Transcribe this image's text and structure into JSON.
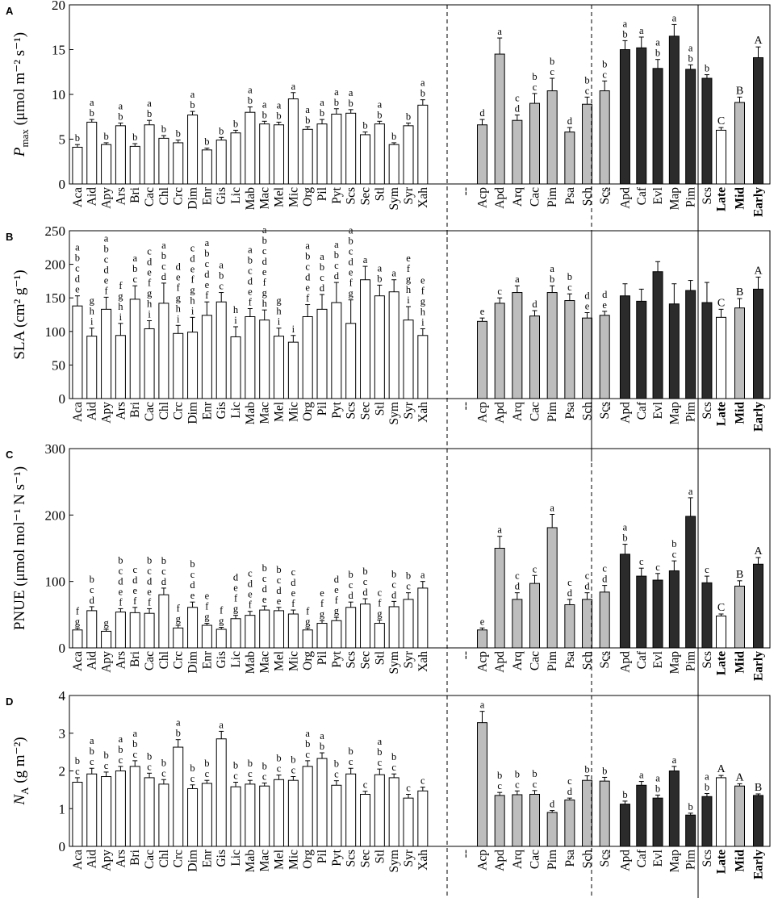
{
  "colors": {
    "white": "#ffffff",
    "grey": "#bdbdbd",
    "black": "#2b2b2b",
    "stroke": "#000000"
  },
  "chart_data": [
    {
      "type": "bar",
      "panel": "A",
      "ylabel_main": "P",
      "ylabel_sub": "max",
      "ylabel_units": "(μmol m⁻² s⁻¹)",
      "ylim": [
        0,
        20
      ],
      "yticks": [
        0,
        5,
        10,
        15,
        20
      ],
      "groups": [
        {
          "name": "grassland",
          "color": "white",
          "separator": "dashed",
          "categories": [
            "Aca",
            "Aid",
            "Apy",
            "Ars",
            "Bri",
            "Cac",
            "Chl",
            "Crc",
            "Dim",
            "Enr",
            "Gis",
            "Lic",
            "Mab",
            "Mac",
            "Mel",
            "Mic",
            "Org",
            "Pil",
            "Pyt",
            "Scs",
            "Sec",
            "Stl",
            "Sym",
            "Syr",
            "Xah"
          ],
          "values": [
            4.1,
            6.9,
            4.4,
            6.5,
            4.2,
            6.6,
            5.1,
            4.6,
            7.7,
            3.8,
            4.9,
            5.7,
            8.0,
            6.7,
            6.6,
            9.5,
            6.1,
            6.7,
            7.8,
            7.9,
            5.5,
            6.7,
            4.4,
            6.5,
            8.8
          ],
          "errors": [
            0.3,
            0.3,
            0.2,
            0.3,
            0.3,
            0.5,
            0.3,
            0.3,
            0.4,
            0.2,
            0.3,
            0.3,
            0.6,
            0.3,
            0.3,
            0.7,
            0.3,
            0.5,
            0.6,
            0.4,
            0.3,
            0.3,
            0.2,
            0.3,
            0.6
          ],
          "letters": [
            "b",
            "a b",
            "b",
            "a b",
            "b",
            "a b",
            "b",
            "b",
            "a b",
            "b",
            "b",
            "b",
            "a b",
            "a b",
            "a b",
            "a",
            "a b",
            "a b",
            "a b",
            "a b",
            "b",
            "a b",
            "b",
            "b",
            "a b"
          ]
        },
        {
          "name": "shrubland",
          "color": "grey",
          "separator": "dashed",
          "categories": [
            "--",
            "Acp",
            "Apd",
            "Arq",
            "Cac",
            "Pim",
            "Psa",
            "Sch",
            "Scs"
          ],
          "values": [
            null,
            6.6,
            14.5,
            7.1,
            9.0,
            10.4,
            5.8,
            8.9,
            10.4
          ],
          "errors": [
            null,
            0.6,
            1.8,
            0.6,
            1.1,
            1.4,
            0.5,
            0.8,
            1.1
          ],
          "letters": [
            "",
            "d",
            "a",
            "c d",
            "b c",
            "b c",
            "d",
            "b c",
            "b c"
          ]
        },
        {
          "name": "forest",
          "color": "black",
          "separator": "solid",
          "categories": [
            "--",
            "Apd",
            "Caf",
            "Evl",
            "Map",
            "Pim",
            "Scs"
          ],
          "values": [
            null,
            15.0,
            15.2,
            12.9,
            16.5,
            12.8,
            11.8
          ],
          "errors": [
            null,
            1.0,
            1.2,
            1.0,
            1.3,
            0.5,
            0.4
          ],
          "letters": [
            "",
            "a b",
            "a",
            "a b",
            "a",
            "a b",
            "b"
          ]
        },
        {
          "name": "succession",
          "color": "mixed",
          "separator": "none",
          "bold_labels": true,
          "categories": [
            "Late",
            "Mid",
            "Early"
          ],
          "colors": [
            "white",
            "grey",
            "black"
          ],
          "values": [
            6.0,
            9.1,
            14.1
          ],
          "errors": [
            0.3,
            0.6,
            1.2
          ],
          "letters": [
            "C",
            "B",
            "A"
          ]
        }
      ]
    },
    {
      "type": "bar",
      "panel": "B",
      "ylabel_main": "SLA (cm² g⁻¹)",
      "ylabel_sub": "",
      "ylabel_units": "",
      "ylim": [
        0,
        250
      ],
      "yticks": [
        0,
        50,
        100,
        150,
        200,
        250
      ],
      "groups": [
        {
          "name": "grassland",
          "color": "white",
          "separator": "dashed",
          "categories": [
            "Aca",
            "Aid",
            "Apy",
            "Ars",
            "Bri",
            "Cac",
            "Chl",
            "Crc",
            "Dim",
            "Enr",
            "Gis",
            "Lic",
            "Mab",
            "Mac",
            "Mel",
            "Mic",
            "Org",
            "Pil",
            "Pyt",
            "Scs",
            "Sec",
            "Stl",
            "Sym",
            "Syr",
            "Xah"
          ],
          "values": [
            138,
            93,
            133,
            94,
            148,
            104,
            142,
            97,
            99,
            124,
            144,
            92,
            122,
            117,
            93,
            84,
            122,
            133,
            143,
            112,
            177,
            153,
            159,
            117,
            94
          ],
          "errors": [
            15,
            12,
            18,
            18,
            20,
            12,
            30,
            12,
            22,
            20,
            14,
            15,
            12,
            15,
            12,
            10,
            18,
            22,
            30,
            35,
            20,
            16,
            18,
            20,
            10
          ],
          "letters": [
            "a b c d e",
            "g h i",
            "a b c d e f",
            "f g h i",
            "a b c",
            "c d e f g h i",
            "a b c d",
            "d e f g h i",
            "c d e f g h i",
            "a b c d e f",
            "a b c",
            "h i",
            "a b c d e f",
            "a b c d e f g h",
            "g h i",
            "i",
            "a b c d e f",
            "a b c d",
            "a b c d",
            "a b c d e f g",
            "a",
            "a b",
            "a",
            "e f g h i",
            "e f g h i"
          ]
        },
        {
          "name": "shrubland",
          "color": "grey",
          "separator": "solid",
          "categories": [
            "--",
            "Acp",
            "Apd",
            "Arq",
            "Cac",
            "Pim",
            "Psa",
            "Sch",
            "Scs"
          ],
          "values": [
            null,
            115,
            142,
            158,
            123,
            158,
            146,
            120,
            124
          ],
          "errors": [
            null,
            5,
            8,
            10,
            8,
            10,
            10,
            8,
            6
          ],
          "letters": [
            "",
            "e",
            "c",
            "a",
            "d",
            "a b",
            "b c",
            "d e",
            "d e"
          ]
        },
        {
          "name": "forest",
          "color": "black",
          "separator": "solid",
          "categories": [
            "--",
            "Apd",
            "Caf",
            "Evl",
            "Map",
            "Pim",
            "Scs"
          ],
          "values": [
            null,
            153,
            145,
            189,
            141,
            161,
            143
          ],
          "errors": [
            null,
            18,
            18,
            15,
            30,
            15,
            30
          ],
          "letters": [
            "",
            "",
            "",
            "",
            "",
            "",
            ""
          ]
        },
        {
          "name": "succession",
          "color": "mixed",
          "separator": "none",
          "bold_labels": true,
          "categories": [
            "Late",
            "Mid",
            "Early"
          ],
          "colors": [
            "white",
            "grey",
            "black"
          ],
          "values": [
            121,
            135,
            163
          ],
          "errors": [
            12,
            14,
            18
          ],
          "letters": [
            "C",
            "B",
            "A"
          ]
        }
      ]
    },
    {
      "type": "bar",
      "panel": "C",
      "ylabel_main": "PNUE (μmol mol⁻¹ N s⁻¹)",
      "ylabel_sub": "",
      "ylabel_units": "",
      "ylim": [
        0,
        300
      ],
      "yticks": [
        0,
        100,
        200,
        300
      ],
      "groups": [
        {
          "name": "grassland",
          "color": "white",
          "separator": "dashed",
          "categories": [
            "Aca",
            "Aid",
            "Apy",
            "Ars",
            "Bri",
            "Cac",
            "Chl",
            "Crc",
            "Dim",
            "Enr",
            "Gis",
            "Lic",
            "Mab",
            "Mac",
            "Mel",
            "Mic",
            "Org",
            "Pil",
            "Pyt",
            "Scs",
            "Sec",
            "Stl",
            "Sym",
            "Syr",
            "Xah"
          ],
          "values": [
            27,
            56,
            25,
            54,
            53,
            52,
            80,
            30,
            61,
            34,
            28,
            44,
            49,
            57,
            56,
            51,
            27,
            37,
            41,
            61,
            66,
            37,
            62,
            73,
            90
          ],
          "errors": [
            3,
            6,
            3,
            5,
            8,
            7,
            10,
            4,
            8,
            3,
            3,
            5,
            6,
            6,
            5,
            6,
            3,
            4,
            5,
            8,
            8,
            5,
            8,
            10,
            10
          ],
          "letters": [
            "f g",
            "b c d",
            "g",
            "b c d e f",
            "c d e f",
            "b c d e f",
            "b c d",
            "f g",
            "b c d e",
            "e f g",
            "f g",
            "d e f g",
            "c d e f",
            "b c d e",
            "b c d e",
            "c d e f",
            "f g",
            "e f g",
            "d e f g",
            "b c d",
            "b c d",
            "c f g",
            "b c d",
            "b c",
            "a"
          ]
        },
        {
          "name": "shrubland",
          "color": "grey",
          "separator": "dashed",
          "categories": [
            "--",
            "Acp",
            "Apd",
            "Arq",
            "Cac",
            "Pim",
            "Psa",
            "Sch",
            "Scs"
          ],
          "values": [
            null,
            27,
            150,
            73,
            97,
            181,
            65,
            73,
            84
          ],
          "errors": [
            null,
            3,
            18,
            10,
            12,
            20,
            8,
            10,
            10
          ],
          "letters": [
            "",
            "e",
            "a",
            "c d",
            "c",
            "a",
            "c d",
            "c d",
            "c d"
          ]
        },
        {
          "name": "forest",
          "color": "black",
          "separator": "solid",
          "categories": [
            "--",
            "Apd",
            "Caf",
            "Evl",
            "Map",
            "Pim",
            "Scs"
          ],
          "values": [
            null,
            141,
            108,
            102,
            116,
            198,
            98
          ],
          "errors": [
            null,
            15,
            12,
            10,
            15,
            28,
            10
          ],
          "letters": [
            "",
            "a b",
            "c",
            "c",
            "b c",
            "a",
            "c"
          ]
        },
        {
          "name": "succession",
          "color": "mixed",
          "separator": "none",
          "bold_labels": true,
          "categories": [
            "Late",
            "Mid",
            "Early"
          ],
          "colors": [
            "white",
            "grey",
            "black"
          ],
          "values": [
            48,
            93,
            126
          ],
          "errors": [
            3,
            8,
            10
          ],
          "letters": [
            "C",
            "B",
            "A"
          ]
        }
      ]
    },
    {
      "type": "bar",
      "panel": "D",
      "ylabel_main": "N",
      "ylabel_sub": "A",
      "ylabel_units": "(g m⁻²)",
      "ylim": [
        0,
        4
      ],
      "yticks": [
        0,
        1,
        2,
        3,
        4
      ],
      "groups": [
        {
          "name": "grassland",
          "color": "white",
          "separator": "dashed",
          "categories": [
            "Aca",
            "Aid",
            "Apy",
            "Ars",
            "Bri",
            "Cac",
            "Chl",
            "Crc",
            "Dim",
            "Enr",
            "Gis",
            "Lic",
            "Mab",
            "Mac",
            "Mel",
            "Mic",
            "Org",
            "Pil",
            "Pyt",
            "Scs",
            "Sec",
            "Stl",
            "Sym",
            "Syr",
            "Xah"
          ],
          "values": [
            1.7,
            1.92,
            1.85,
            2.0,
            2.12,
            1.82,
            1.65,
            2.63,
            1.53,
            1.67,
            2.85,
            1.58,
            1.65,
            1.6,
            1.77,
            1.75,
            2.12,
            2.33,
            1.62,
            1.92,
            1.38,
            1.9,
            1.82,
            1.28,
            1.47
          ],
          "errors": [
            0.12,
            0.15,
            0.12,
            0.12,
            0.15,
            0.12,
            0.12,
            0.2,
            0.1,
            0.08,
            0.2,
            0.12,
            0.1,
            0.08,
            0.12,
            0.1,
            0.15,
            0.15,
            0.12,
            0.15,
            0.08,
            0.15,
            0.1,
            0.1,
            0.1
          ],
          "letters": [
            "b c",
            "a b c",
            "b c",
            "a b c",
            "a b c",
            "b c",
            "b c",
            "a b",
            "b c",
            "b c",
            "a",
            "b c",
            "b c",
            "b c",
            "b c",
            "b c",
            "a b c",
            "a b",
            "b c",
            "b c",
            "c",
            "a b c",
            "b c",
            "c",
            "c"
          ]
        },
        {
          "name": "shrubland",
          "color": "grey",
          "separator": "dashed",
          "categories": [
            "--",
            "Acp",
            "Apd",
            "Arq",
            "Cac",
            "Pim",
            "Psa",
            "Sch",
            "Scs"
          ],
          "values": [
            null,
            3.28,
            1.35,
            1.37,
            1.38,
            0.9,
            1.23,
            1.75,
            1.73
          ],
          "errors": [
            null,
            0.3,
            0.08,
            0.1,
            0.1,
            0.05,
            0.05,
            0.12,
            0.1
          ],
          "letters": [
            "",
            "a",
            "b c",
            "b c",
            "b c",
            "d",
            "c d",
            "b",
            "b"
          ]
        },
        {
          "name": "forest",
          "color": "black",
          "separator": "solid",
          "categories": [
            "--",
            "Apd",
            "Caf",
            "Evl",
            "Map",
            "Pim",
            "Scs"
          ],
          "values": [
            null,
            1.12,
            1.62,
            1.28,
            2.0,
            0.83,
            1.32
          ],
          "errors": [
            null,
            0.08,
            0.1,
            0.08,
            0.12,
            0.05,
            0.08
          ],
          "letters": [
            "",
            "b",
            "a",
            "a b",
            "a",
            "b",
            "a b"
          ]
        },
        {
          "name": "succession",
          "color": "mixed",
          "separator": "none",
          "bold_labels": true,
          "categories": [
            "Late",
            "Mid",
            "Early"
          ],
          "colors": [
            "white",
            "grey",
            "black"
          ],
          "values": [
            1.82,
            1.6,
            1.35
          ],
          "errors": [
            0.06,
            0.06,
            0.04
          ],
          "letters": [
            "A",
            "A",
            "B"
          ]
        }
      ]
    }
  ]
}
